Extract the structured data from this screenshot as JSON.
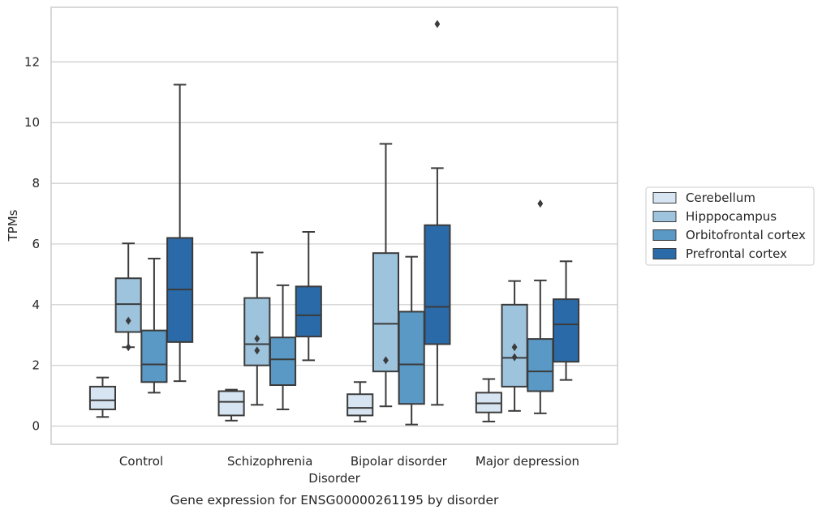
{
  "chart_data": {
    "type": "box",
    "caption": "Gene expression for ENSG00000261195 by disorder",
    "xlabel": "Disorder",
    "ylabel": "TPMs",
    "ylim": [
      -0.6,
      13.8
    ],
    "yticks": [
      0,
      2,
      4,
      6,
      8,
      10,
      12
    ],
    "grid": "horizontal",
    "legend_position": "right",
    "categories": [
      "Control",
      "Schizophrenia",
      "Bipolar disorder",
      "Major depression"
    ],
    "series": [
      {
        "name": "Cerebellum",
        "color": "#d7e5f2",
        "boxes": [
          {
            "whisker_low": 0.3,
            "q1": 0.55,
            "median": 0.85,
            "q3": 1.3,
            "whisker_high": 1.6,
            "outliers": []
          },
          {
            "whisker_low": 0.18,
            "q1": 0.35,
            "median": 0.8,
            "q3": 1.15,
            "whisker_high": 1.2,
            "outliers": []
          },
          {
            "whisker_low": 0.15,
            "q1": 0.35,
            "median": 0.6,
            "q3": 1.05,
            "whisker_high": 1.45,
            "outliers": []
          },
          {
            "whisker_low": 0.15,
            "q1": 0.45,
            "median": 0.75,
            "q3": 1.1,
            "whisker_high": 1.55,
            "outliers": []
          }
        ]
      },
      {
        "name": "Hipppocampus",
        "color": "#9dc3dd",
        "boxes": [
          {
            "whisker_low": 2.6,
            "q1": 3.1,
            "median": 4.02,
            "q3": 4.87,
            "whisker_high": 6.02,
            "outliers": [
              2.6,
              3.47
            ]
          },
          {
            "whisker_low": 0.7,
            "q1": 2.0,
            "median": 2.7,
            "q3": 4.22,
            "whisker_high": 5.72,
            "outliers": [
              2.49,
              2.88
            ]
          },
          {
            "whisker_low": 0.65,
            "q1": 1.8,
            "median": 3.37,
            "q3": 5.7,
            "whisker_high": 9.3,
            "outliers": [
              2.17
            ]
          },
          {
            "whisker_low": 0.5,
            "q1": 1.3,
            "median": 2.25,
            "q3": 4.0,
            "whisker_high": 4.78,
            "outliers": [
              2.27,
              2.6
            ]
          }
        ]
      },
      {
        "name": "Orbitofrontal cortex",
        "color": "#5a99c5",
        "boxes": [
          {
            "whisker_low": 1.1,
            "q1": 1.45,
            "median": 2.03,
            "q3": 3.15,
            "whisker_high": 5.52,
            "outliers": []
          },
          {
            "whisker_low": 0.55,
            "q1": 1.35,
            "median": 2.2,
            "q3": 2.92,
            "whisker_high": 4.64,
            "outliers": []
          },
          {
            "whisker_low": 0.05,
            "q1": 0.73,
            "median": 2.03,
            "q3": 3.77,
            "whisker_high": 5.58,
            "outliers": []
          },
          {
            "whisker_low": 0.42,
            "q1": 1.15,
            "median": 1.8,
            "q3": 2.87,
            "whisker_high": 4.8,
            "outliers": [
              7.33
            ]
          }
        ]
      },
      {
        "name": "Prefrontal cortex",
        "color": "#2b6aa9",
        "boxes": [
          {
            "whisker_low": 1.48,
            "q1": 2.77,
            "median": 4.5,
            "q3": 6.2,
            "whisker_high": 11.25,
            "outliers": []
          },
          {
            "whisker_low": 2.17,
            "q1": 2.95,
            "median": 3.65,
            "q3": 4.6,
            "whisker_high": 6.4,
            "outliers": []
          },
          {
            "whisker_low": 0.7,
            "q1": 2.7,
            "median": 3.93,
            "q3": 6.62,
            "whisker_high": 8.5,
            "outliers": [
              13.25
            ]
          },
          {
            "whisker_low": 1.52,
            "q1": 2.12,
            "median": 3.35,
            "q3": 4.18,
            "whisker_high": 5.43,
            "outliers": []
          }
        ]
      }
    ]
  }
}
